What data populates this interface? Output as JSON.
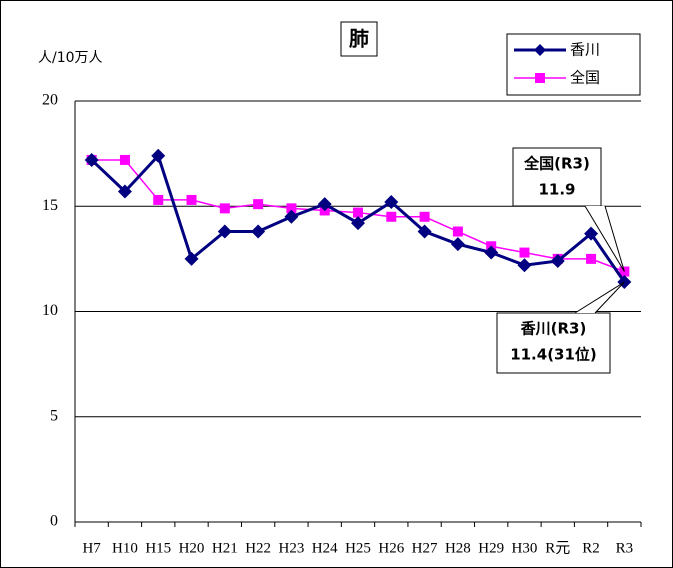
{
  "chart_data": {
    "type": "line",
    "title": "肺",
    "y_label": "人/10万人",
    "categories": [
      "H7",
      "H10",
      "H15",
      "H20",
      "H21",
      "H22",
      "H23",
      "H24",
      "H25",
      "H26",
      "H27",
      "H28",
      "H29",
      "H30",
      "R元",
      "R2",
      "R3"
    ],
    "series": [
      {
        "name": "香川",
        "color": "#000080",
        "marker": "diamond",
        "values": [
          17.2,
          15.7,
          17.4,
          12.5,
          13.8,
          13.8,
          14.5,
          15.1,
          14.2,
          15.2,
          13.8,
          13.2,
          12.8,
          12.2,
          12.4,
          13.7,
          11.4
        ]
      },
      {
        "name": "全国",
        "color": "#ff00ff",
        "marker": "square",
        "values": [
          17.2,
          17.2,
          15.3,
          15.3,
          14.9,
          15.1,
          14.9,
          14.8,
          14.7,
          14.5,
          14.5,
          13.8,
          13.1,
          12.8,
          12.5,
          12.5,
          11.9
        ]
      }
    ],
    "ylim": [
      0,
      20
    ],
    "yticks": [
      0,
      5,
      10,
      15,
      20
    ],
    "grid": true,
    "legend": "top-right",
    "annotations": [
      {
        "label": "全国(R3)",
        "text": "11.9"
      },
      {
        "label": "香川(R3)",
        "text": "11.4(31位)"
      }
    ]
  }
}
